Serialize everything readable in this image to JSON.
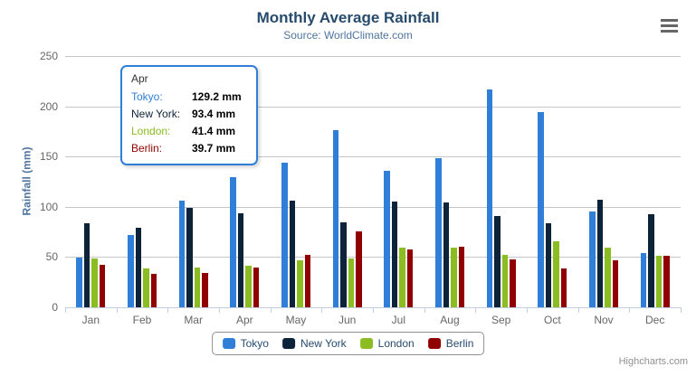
{
  "chart": {
    "credits_label": "Highcharts.com"
  },
  "tooltip": {
    "header": "Apr",
    "rows": [
      {
        "label": "Tokyo:",
        "value": "129.2 mm",
        "color": "#2f7ed8"
      },
      {
        "label": "New York:",
        "value": "93.4 mm",
        "color": "#0d233a"
      },
      {
        "label": "London:",
        "value": "41.4 mm",
        "color": "#8bbc21"
      },
      {
        "label": "Berlin:",
        "value": "39.7 mm",
        "color": "#910000"
      }
    ]
  },
  "chart_data": {
    "type": "bar",
    "title": "Monthly Average Rainfall",
    "subtitle": "Source: WorldClimate.com",
    "categories": [
      "Jan",
      "Feb",
      "Mar",
      "Apr",
      "May",
      "Jun",
      "Jul",
      "Aug",
      "Sep",
      "Oct",
      "Nov",
      "Dec"
    ],
    "series": [
      {
        "name": "Tokyo",
        "color": "#2f7ed8",
        "values": [
          49.9,
          71.5,
          106.4,
          129.2,
          144.0,
          176.0,
          135.6,
          148.5,
          216.4,
          194.1,
          95.6,
          54.4
        ]
      },
      {
        "name": "New York",
        "color": "#0d233a",
        "values": [
          83.6,
          78.8,
          98.5,
          93.4,
          106.0,
          84.5,
          105.0,
          104.3,
          91.2,
          83.5,
          106.6,
          92.3
        ]
      },
      {
        "name": "London",
        "color": "#8bbc21",
        "values": [
          48.9,
          38.8,
          39.3,
          41.4,
          47.0,
          48.3,
          59.0,
          59.6,
          52.4,
          65.2,
          59.3,
          51.2
        ]
      },
      {
        "name": "Berlin",
        "color": "#910000",
        "values": [
          42.4,
          33.2,
          34.5,
          39.7,
          52.6,
          75.5,
          57.4,
          60.4,
          47.6,
          39.1,
          46.8,
          51.1
        ]
      }
    ],
    "xlabel": "",
    "ylabel": "Rainfall (mm)",
    "unit": "mm",
    "yticks": [
      0,
      50,
      100,
      150,
      200,
      250
    ],
    "ylim": [
      0,
      250
    ],
    "grid": true,
    "legend_position": "bottom"
  }
}
